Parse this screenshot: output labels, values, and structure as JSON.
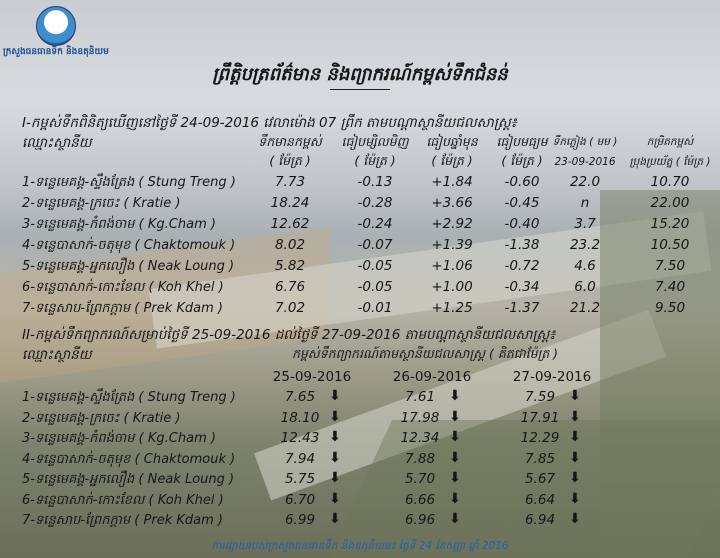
{
  "logo": {
    "text": "ក្រសួងធនធានទឹក និងឧតុនិយម"
  },
  "title": "ព្រឹត្តិបត្រព័ត៌មាន និងព្យាករណ៍កម្ពស់ទឹកជំនន់",
  "observed": {
    "heading": "I-កម្ពស់ទឹកពិនិត្យឃើញនៅថ្ងៃទី 24-09-2016 វេលាម៉ោង 07 ព្រឹក តាមបណ្តាស្ថានីយជលសាស្ត្រ៖",
    "station_label": "ឈ្មោះស្ថានីយ",
    "columns": [
      {
        "label": "ទឹកមានកម្ពស់",
        "unit": "( ម៉ែត្រ )"
      },
      {
        "label": "ធៀបម្សិលមិញ",
        "unit": "( ម៉ែត្រ )"
      },
      {
        "label": "ធៀបឆ្នាំមុន",
        "unit": "( ម៉ែត្រ )"
      },
      {
        "label": "ធៀបមធ្យម",
        "unit": "( ម៉ែត្រ )"
      },
      {
        "label": "ទឹកភ្លៀង ( មម )",
        "unit": "23-09-2016"
      },
      {
        "label": "កម្រិតកម្ពស់",
        "unit": "ប្រុងប្រយ័ត្ន ( ម៉ែត្រ )"
      }
    ],
    "rows": [
      {
        "station": "1-ទន្លេមេគង្គ-ស្ទឹងត្រែង ( Stung Treng )",
        "values": [
          "7.73",
          "-0.13",
          "+1.84",
          "-0.60",
          "22.0",
          "10.70"
        ]
      },
      {
        "station": "2-ទន្លេមេគង្គ-ក្រចេះ ( Kratie )",
        "values": [
          "18.24",
          "-0.28",
          "+3.66",
          "-0.45",
          "n",
          "22.00"
        ]
      },
      {
        "station": "3-ទន្លេមេគង្គ-កំពង់ចាម ( Kg.Cham )",
        "values": [
          "12.62",
          "-0.24",
          "+2.92",
          "-0.40",
          "3.7",
          "15.20"
        ]
      },
      {
        "station": "4-ទន្លេបាសាក់-ចតុមុខ ( Chaktomouk )",
        "values": [
          "8.02",
          "-0.07",
          "+1.39",
          "-1.38",
          "23.2",
          "10.50"
        ]
      },
      {
        "station": "5-ទន្លេមេគង្គ-អ្នកលឿង ( Neak Loung )",
        "values": [
          "5.82",
          "-0.05",
          "+1.06",
          "-0.72",
          "4.6",
          "7.50"
        ]
      },
      {
        "station": "6-ទន្លេបាសាក់-កោះខែល ( Koh Khel )",
        "values": [
          "6.76",
          "-0.05",
          "+1.00",
          "-0.34",
          "6.0",
          "7.40"
        ]
      },
      {
        "station": "7-ទន្លេសាប-ព្រែកក្តាម ( Prek Kdam )",
        "values": [
          "7.02",
          "-0.01",
          "+1.25",
          "-1.37",
          "21.2",
          "9.50"
        ]
      }
    ]
  },
  "forecast": {
    "heading": "II-កម្ពស់ទឹកព្យាករណ៍សម្រាប់ថ្ងៃទី 25-09-2016 ដល់ថ្ងៃទី 27-09-2016 តាមបណ្តាស្ថានីយជលសាស្ត្រ៖",
    "station_label": "ឈ្មោះស្ថានីយ",
    "subheading": "កម្ពស់ទឹកព្យាករណ៍តាមស្ថានីយជលសាស្ត្រ ( គិតជាម៉ែត្រ )",
    "dates": [
      "25-09-2016",
      "26-09-2016",
      "27-09-2016"
    ],
    "trend_icon": "arrow-down-icon",
    "rows": [
      {
        "station": "1-ទន្លេមេគង្គ-ស្ទឹងត្រែង ( Stung Treng )",
        "values": [
          "7.65",
          "7.61",
          "7.59"
        ]
      },
      {
        "station": "2-ទន្លេមេគង្គ-ក្រចេះ ( Kratie )",
        "values": [
          "18.10",
          "17.98",
          "17.91"
        ]
      },
      {
        "station": "3-ទន្លេមេគង្គ-កំពង់ចាម ( Kg.Cham )",
        "values": [
          "12.43",
          "12.34",
          "12.29"
        ]
      },
      {
        "station": "4-ទន្លេបាសាក់-ចតុមុខ ( Chaktomouk )",
        "values": [
          "7.94",
          "7.88",
          "7.85"
        ]
      },
      {
        "station": "5-ទន្លេមេគង្គ-អ្នកលឿង ( Neak Loung )",
        "values": [
          "5.75",
          "5.70",
          "5.67"
        ]
      },
      {
        "station": "6-ទន្លេបាសាក់-កោះខែល ( Koh Khel )",
        "values": [
          "6.70",
          "6.66",
          "6.64"
        ]
      },
      {
        "station": "7-ទន្លេសាប-ព្រែកក្តាម ( Prek Kdam )",
        "values": [
          "6.99",
          "6.96",
          "6.94"
        ]
      }
    ]
  },
  "footer": "ការផ្សាយរបស់ក្រសួងធនធានទឹក និងឧតុនិយម៖ ថ្ងៃទី 24 ខែកញ្ញា ឆ្នាំ 2016",
  "colors": {
    "footer_text": "#1f5fb0",
    "text": "#161616"
  }
}
